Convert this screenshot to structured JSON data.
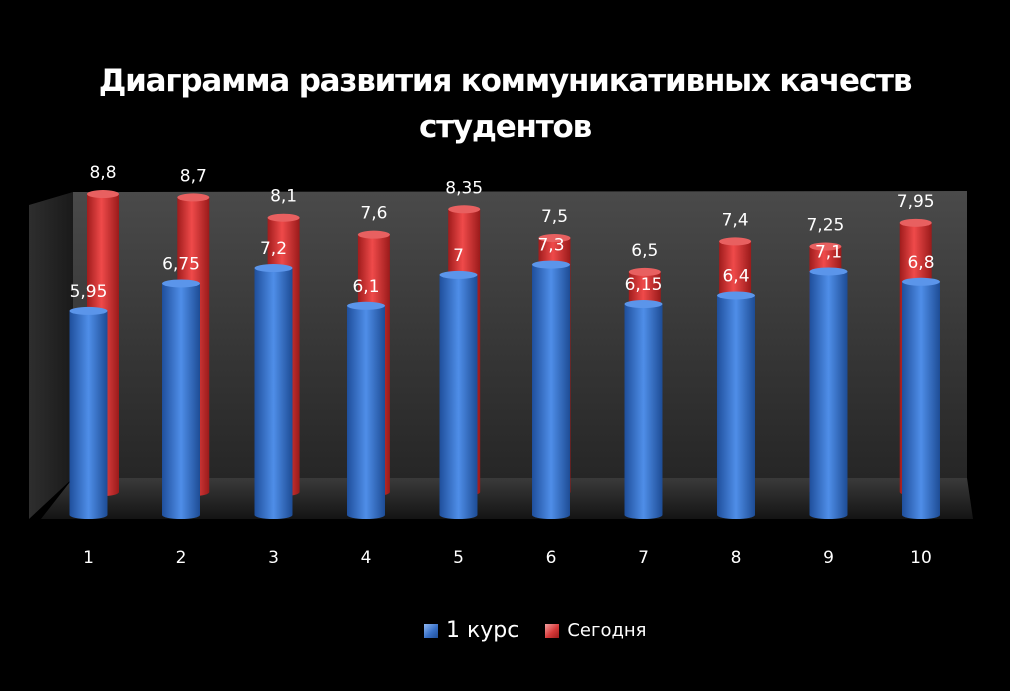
{
  "chart_data": {
    "type": "bar",
    "title_lines": [
      "Диаграмма развития коммуникативных качеств",
      "студентов"
    ],
    "categories": [
      "1",
      "2",
      "3",
      "4",
      "5",
      "6",
      "7",
      "8",
      "9",
      "10"
    ],
    "series": [
      {
        "name": "1 курс",
        "color": "#3a72c9",
        "values": [
          5.95,
          6.75,
          7.2,
          6.1,
          7,
          7.3,
          6.15,
          6.4,
          7.1,
          6.8
        ],
        "labels": [
          "5,95",
          "6,75",
          "7,2",
          "6,1",
          "7",
          "7,3",
          "6,15",
          "6,4",
          "7,1",
          "6,8"
        ]
      },
      {
        "name": "Сегодня",
        "color": "#d63a3a",
        "values": [
          8.8,
          8.7,
          8.1,
          7.6,
          8.35,
          7.5,
          6.5,
          7.4,
          7.25,
          7.95
        ],
        "labels": [
          "8,8",
          "8,7",
          "8,1",
          "7,6",
          "8,35",
          "7,5",
          "6,5",
          "7,4",
          "7,25",
          "7,95"
        ]
      }
    ],
    "xlabel": "",
    "ylabel": "",
    "style": "3d-cylinder",
    "legend_position": "bottom",
    "grid": false
  }
}
